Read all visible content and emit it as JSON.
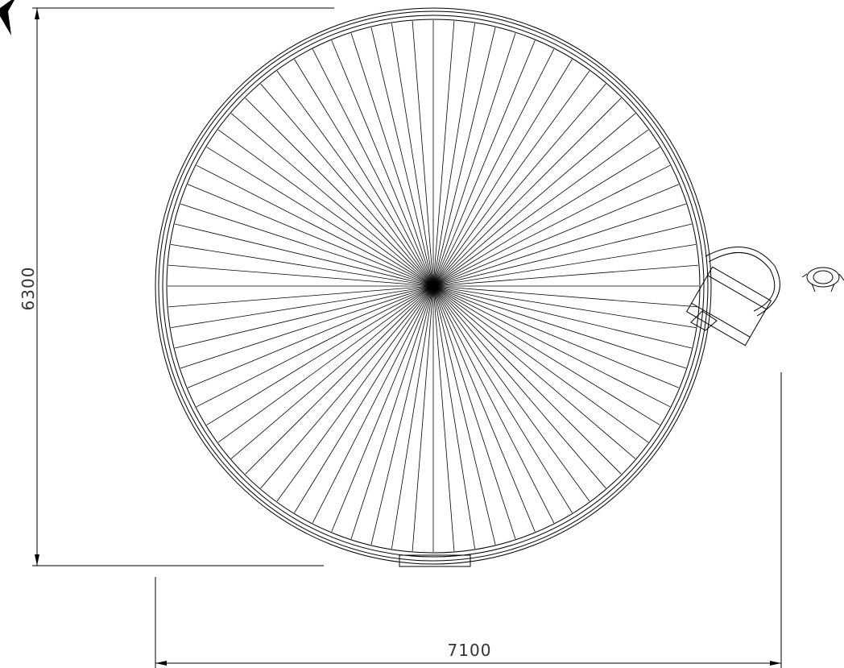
{
  "dimensions": {
    "height": 6300,
    "width": 7100
  }
}
